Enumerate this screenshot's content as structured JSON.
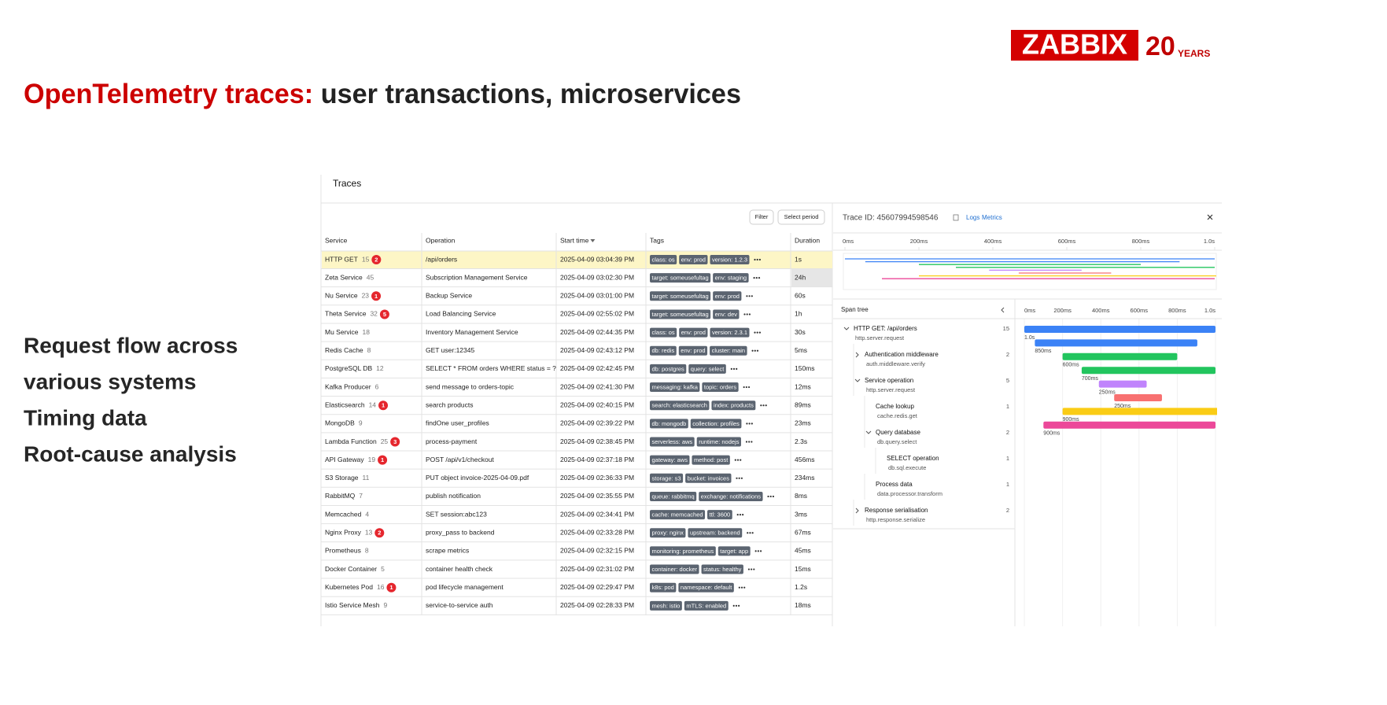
{
  "header": {
    "logo": "ZABBIX",
    "anniversary": "20",
    "anniversary_sub": "YEARS",
    "title_highlight": "OpenTelemetry traces:",
    "title_rest": " user transactions, microservices"
  },
  "bullets": [
    "Request flow across",
    "various systems",
    "Timing data",
    "Root-cause analysis"
  ],
  "panel": {
    "title": "Traces",
    "buttons": [
      "Filter",
      "Select period"
    ],
    "table": {
      "columns": [
        "Service",
        "Operation",
        "Start time",
        "Tags",
        "Duration"
      ],
      "rows": [
        {
          "service": "HTTP GET",
          "count": 15,
          "errors": 2,
          "operation": "/api/orders",
          "start": "2025-04-09 03:04:39 PM",
          "tags": [
            "class: os",
            "env: prod",
            "version: 1.2.3"
          ],
          "duration": "1s"
        },
        {
          "service": "Zeta Service",
          "count": 45,
          "operation": "Subscription Management Service",
          "start": "2025-04-09 03:02:30 PM",
          "tags": [
            "target: someusefultag",
            "env: staging"
          ],
          "duration": "24h"
        },
        {
          "service": "Nu Service",
          "count": 23,
          "errors": 1,
          "operation": "Backup Service",
          "start": "2025-04-09 03:01:00 PM",
          "tags": [
            "target: someusefultag",
            "env: prod"
          ],
          "duration": "60s"
        },
        {
          "service": "Theta Service",
          "count": 32,
          "errors": 5,
          "operation": "Load Balancing Service",
          "start": "2025-04-09 02:55:02 PM",
          "tags": [
            "target: someusefultag",
            "env: dev"
          ],
          "duration": "1h"
        },
        {
          "service": "Mu Service",
          "count": 18,
          "operation": "Inventory Management Service",
          "start": "2025-04-09 02:44:35 PM",
          "tags": [
            "class: os",
            "env: prod",
            "version: 2.3.1"
          ],
          "duration": "30s"
        },
        {
          "service": "Redis Cache",
          "count": 8,
          "operation": "GET user:12345",
          "start": "2025-04-09 02:43:12 PM",
          "tags": [
            "db: redis",
            "env: prod",
            "cluster: main"
          ],
          "duration": "5ms"
        },
        {
          "service": "PostgreSQL DB",
          "count": 12,
          "operation": "SELECT * FROM orders WHERE status = ?",
          "start": "2025-04-09 02:42:45 PM",
          "tags": [
            "db: postgres",
            "query: select"
          ],
          "duration": "150ms"
        },
        {
          "service": "Kafka Producer",
          "count": 6,
          "operation": "send message to orders-topic",
          "start": "2025-04-09 02:41:30 PM",
          "tags": [
            "messaging: kafka",
            "topic: orders"
          ],
          "duration": "12ms"
        },
        {
          "service": "Elasticsearch",
          "count": 14,
          "errors": 1,
          "operation": "search products",
          "start": "2025-04-09 02:40:15 PM",
          "tags": [
            "search: elasticsearch",
            "index: products"
          ],
          "duration": "89ms"
        },
        {
          "service": "MongoDB",
          "count": 9,
          "operation": "findOne user_profiles",
          "start": "2025-04-09 02:39:22 PM",
          "tags": [
            "db: mongodb",
            "collection: profiles"
          ],
          "duration": "23ms"
        },
        {
          "service": "Lambda Function",
          "count": 25,
          "errors": 3,
          "operation": "process-payment",
          "start": "2025-04-09 02:38:45 PM",
          "tags": [
            "serverless: aws",
            "runtime: nodejs"
          ],
          "duration": "2.3s"
        },
        {
          "service": "API Gateway",
          "count": 19,
          "errors": 1,
          "operation": "POST /api/v1/checkout",
          "start": "2025-04-09 02:37:18 PM",
          "tags": [
            "gateway: aws",
            "method: post"
          ],
          "duration": "456ms"
        },
        {
          "service": "S3 Storage",
          "count": 11,
          "operation": "PUT object invoice-2025-04-09.pdf",
          "start": "2025-04-09 02:36:33 PM",
          "tags": [
            "storage: s3",
            "bucket: invoices"
          ],
          "duration": "234ms"
        },
        {
          "service": "RabbitMQ",
          "count": 7,
          "operation": "publish notification",
          "start": "2025-04-09 02:35:55 PM",
          "tags": [
            "queue: rabbitmq",
            "exchange: notifications"
          ],
          "duration": "8ms"
        },
        {
          "service": "Memcached",
          "count": 4,
          "operation": "SET session:abc123",
          "start": "2025-04-09 02:34:41 PM",
          "tags": [
            "cache: memcached",
            "ttl: 3600"
          ],
          "duration": "3ms"
        },
        {
          "service": "Nginx Proxy",
          "count": 13,
          "errors": 2,
          "operation": "proxy_pass to backend",
          "start": "2025-04-09 02:33:28 PM",
          "tags": [
            "proxy: nginx",
            "upstream: backend"
          ],
          "duration": "67ms"
        },
        {
          "service": "Prometheus",
          "count": 8,
          "operation": "scrape metrics",
          "start": "2025-04-09 02:32:15 PM",
          "tags": [
            "monitoring: prometheus",
            "target: app"
          ],
          "duration": "45ms"
        },
        {
          "service": "Docker Container",
          "count": 5,
          "operation": "container health check",
          "start": "2025-04-09 02:31:02 PM",
          "tags": [
            "container: docker",
            "status: healthy"
          ],
          "duration": "15ms"
        },
        {
          "service": "Kubernetes Pod",
          "count": 16,
          "errors": 1,
          "operation": "pod lifecycle management",
          "start": "2025-04-09 02:29:47 PM",
          "tags": [
            "k8s: pod",
            "namespace: default"
          ],
          "duration": "1.2s"
        },
        {
          "service": "Istio Service Mesh",
          "count": 9,
          "operation": "service-to-service auth",
          "start": "2025-04-09 02:28:33 PM",
          "tags": [
            "mesh: istio",
            "mTLS: enabled"
          ],
          "duration": "18ms"
        }
      ]
    }
  },
  "trace": {
    "id_label": "Trace ID: 45607994598546",
    "links": [
      "Logs",
      "Metrics"
    ],
    "xlim": [
      0,
      1000
    ],
    "ticks": [
      {
        "value": 0,
        "label": "0ms"
      },
      {
        "value": 200,
        "label": "200ms"
      },
      {
        "value": 400,
        "label": "400ms"
      },
      {
        "value": 600,
        "label": "600ms"
      },
      {
        "value": 800,
        "label": "800ms"
      },
      {
        "value": 1000,
        "label": "1.0s"
      }
    ],
    "span_tree_title": "Span tree",
    "spans": [
      {
        "name": "HTTP GET: /api/orders",
        "op": "http.server.request",
        "count": 15,
        "level": 0,
        "expanded": true
      },
      {
        "name": "Authentication middleware",
        "op": "auth.middleware.verify",
        "count": 2,
        "level": 1,
        "expanded": false
      },
      {
        "name": "Service operation",
        "op": "http.server.request",
        "count": 5,
        "level": 1,
        "expanded": true
      },
      {
        "name": "Cache lookup",
        "op": "cache.redis.get",
        "count": 1,
        "level": 2
      },
      {
        "name": "Query database",
        "op": "db.query.select",
        "count": 2,
        "level": 2,
        "expanded": true
      },
      {
        "name": "SELECT operation",
        "op": "db.sql.execute",
        "count": 1,
        "level": 3
      },
      {
        "name": "Process data",
        "op": "data.processor.transform",
        "count": 1,
        "level": 2
      },
      {
        "name": "Response serialisation",
        "op": "http.response.serialize",
        "count": 2,
        "level": 1,
        "expanded": false
      }
    ],
    "bars": {
      "start": [
        0,
        55,
        200,
        300,
        390,
        470,
        200,
        100
      ],
      "duration": [
        1000,
        850,
        600,
        700,
        250,
        250,
        900,
        900
      ],
      "value_labels": [
        "1.0s",
        "850ms",
        "600ms",
        "700ms",
        "250ms",
        "250ms",
        "900ms",
        "900ms"
      ],
      "colors": [
        "#3b82f6",
        "#3b82f6",
        "#22c55e",
        "#22c55e",
        "#c084fc",
        "#f87171",
        "#facc15",
        "#ec4899"
      ]
    }
  }
}
